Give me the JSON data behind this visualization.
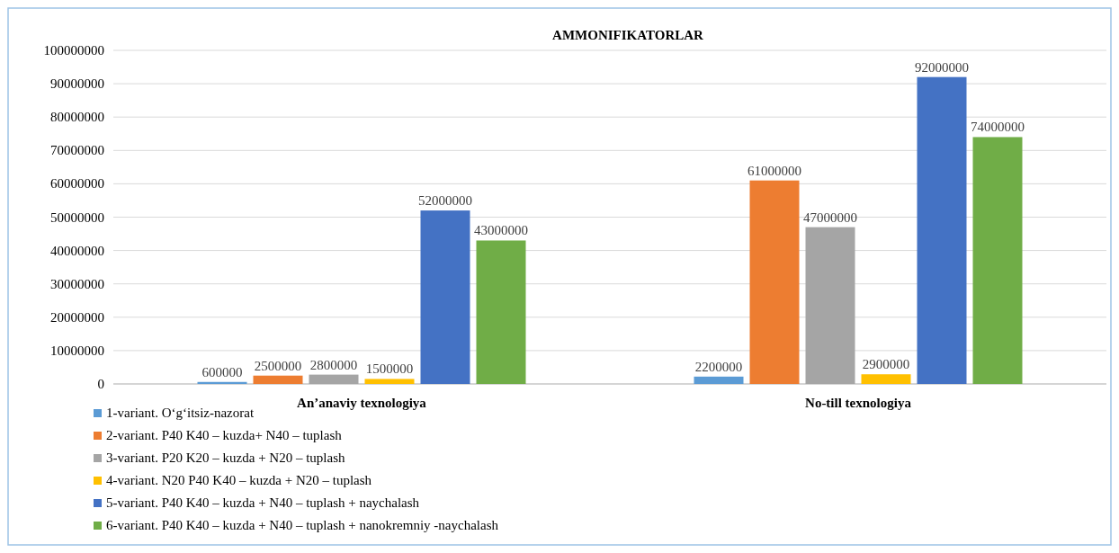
{
  "chart_data": {
    "type": "bar",
    "title": "AMMONIFIKATORLAR",
    "categories": [
      "An’anaviy texnologiya",
      "No-till texnologiya"
    ],
    "series": [
      {
        "name": "1-variant. O‘g‘itsiz-nazorat",
        "color": "#5b9bd5",
        "values": [
          600000,
          2200000
        ]
      },
      {
        "name": "2-variant. P40 K40 – kuzda+ N40 – tuplash",
        "color": "#ed7d31",
        "values": [
          2500000,
          61000000
        ]
      },
      {
        "name": "3-variant. P20 K20 – kuzda + N20 – tuplash",
        "color": "#a5a5a5",
        "values": [
          2800000,
          47000000
        ]
      },
      {
        "name": "4-variant. N20 P40 K40 – kuzda + N20 – tuplash",
        "color": "#ffc000",
        "values": [
          1500000,
          2900000
        ]
      },
      {
        "name": "5-variant. P40 K40 – kuzda + N40 – tuplash + naychalash",
        "color": "#4472c4",
        "values": [
          52000000,
          92000000
        ]
      },
      {
        "name": "6-variant. P40 K40 – kuzda + N40 – tuplash + nanokremniy -naychalash",
        "color": "#70ad47",
        "values": [
          43000000,
          74000000
        ]
      }
    ],
    "ylim": [
      0,
      100000000
    ],
    "yticks": [
      0,
      10000000,
      20000000,
      30000000,
      40000000,
      50000000,
      60000000,
      70000000,
      80000000,
      90000000,
      100000000
    ],
    "grid": "y",
    "legend": "bottom left",
    "data_labels": true
  }
}
